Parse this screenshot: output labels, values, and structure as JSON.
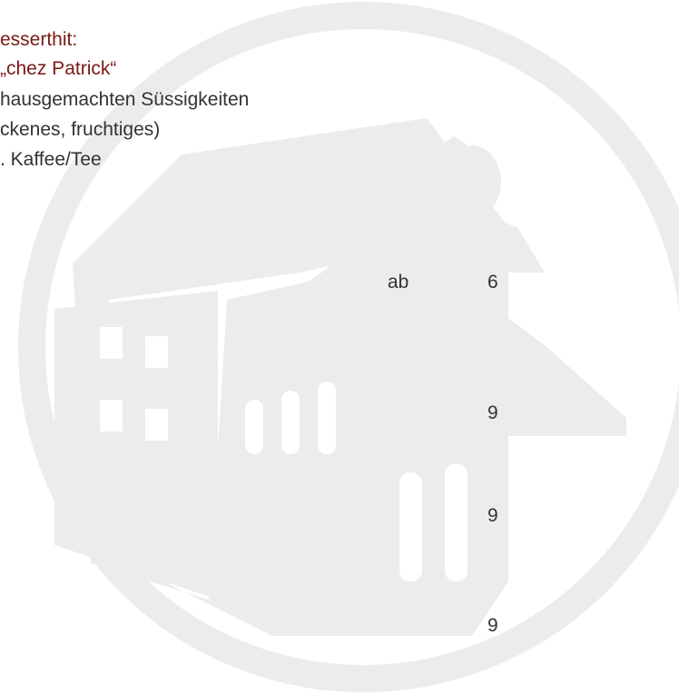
{
  "menu": {
    "heading": [
      "esserthit:",
      "„chez Patrick“"
    ],
    "lines": [
      "hausgemachten Süssigkeiten",
      "ckenes, fruchtiges)",
      ". Kaffee/Tee"
    ],
    "price_prefix": "ab",
    "prices": [
      6,
      9,
      9,
      9
    ]
  }
}
